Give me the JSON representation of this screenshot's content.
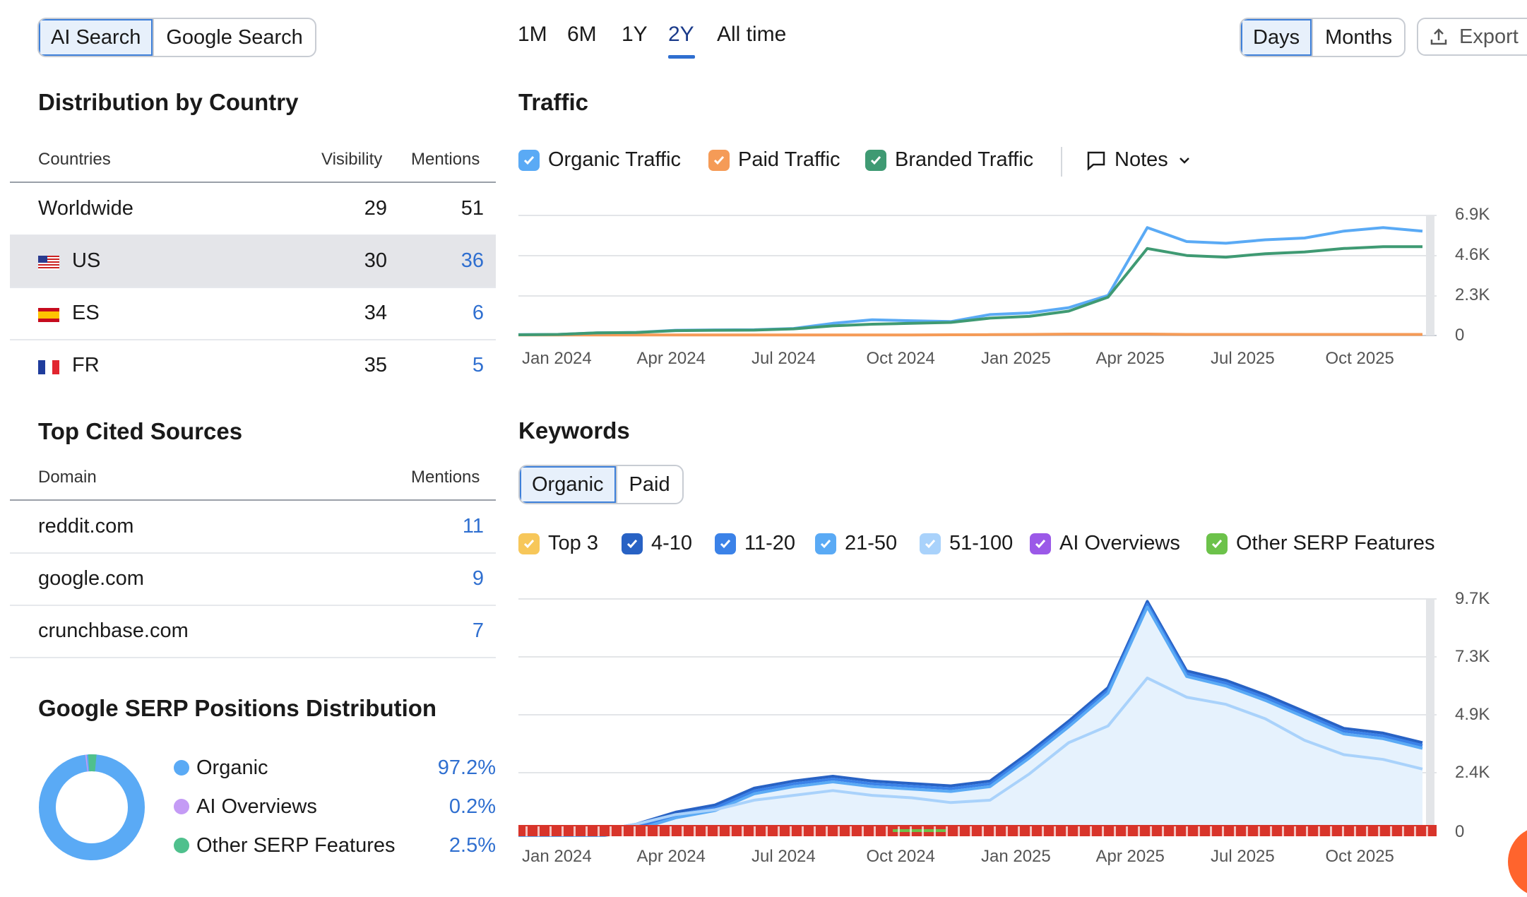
{
  "search_toggle": {
    "ai": "AI Search",
    "google": "Google Search"
  },
  "periods": [
    "1M",
    "6M",
    "1Y",
    "2Y",
    "All time"
  ],
  "active_period": "2Y",
  "granularity": {
    "days": "Days",
    "months": "Months"
  },
  "export_label": "Export",
  "country": {
    "title": "Distribution by Country",
    "headers": {
      "countries": "Countries",
      "visibility": "Visibility",
      "mentions": "Mentions"
    },
    "rows": [
      {
        "name": "Worldwide",
        "visibility": "29",
        "mentions": "51"
      },
      {
        "name": "US",
        "visibility": "30",
        "mentions": "36"
      },
      {
        "name": "ES",
        "visibility": "34",
        "mentions": "6"
      },
      {
        "name": "FR",
        "visibility": "35",
        "mentions": "5"
      }
    ]
  },
  "sources": {
    "title": "Top Cited Sources",
    "headers": {
      "domain": "Domain",
      "mentions": "Mentions"
    },
    "rows": [
      {
        "domain": "reddit.com",
        "mentions": "11"
      },
      {
        "domain": "google.com",
        "mentions": "9"
      },
      {
        "domain": "crunchbase.com",
        "mentions": "7"
      }
    ]
  },
  "serp": {
    "title": "Google SERP Positions Distribution",
    "items": [
      {
        "label": "Organic",
        "value": "97.2%",
        "color": "#5aaaf5"
      },
      {
        "label": "AI Overviews",
        "value": "0.2%",
        "color": "#c49bf5"
      },
      {
        "label": "Other SERP Features",
        "value": "2.5%",
        "color": "#4fc08d"
      }
    ]
  },
  "traffic": {
    "title": "Traffic",
    "legend": [
      {
        "label": "Organic Traffic",
        "color": "#5aaaf5"
      },
      {
        "label": "Paid Traffic",
        "color": "#f59b57"
      },
      {
        "label": "Branded Traffic",
        "color": "#3f9a73"
      }
    ],
    "notes_label": "Notes",
    "y_ticks": [
      "6.9K",
      "4.6K",
      "2.3K",
      "0"
    ],
    "x_ticks": [
      "Jan 2024",
      "Apr 2024",
      "Jul 2024",
      "Oct 2024",
      "Jan 2025",
      "Apr 2025",
      "Jul 2025",
      "Oct 2025"
    ]
  },
  "keywords": {
    "title": "Keywords",
    "tabs": {
      "organic": "Organic",
      "paid": "Paid"
    },
    "legend": [
      {
        "label": "Top 3",
        "color": "#f7c75a"
      },
      {
        "label": "4-10",
        "color": "#2862c4"
      },
      {
        "label": "11-20",
        "color": "#3b82e8"
      },
      {
        "label": "21-50",
        "color": "#5aaaf5"
      },
      {
        "label": "51-100",
        "color": "#a9d2fb"
      },
      {
        "label": "AI Overviews",
        "color": "#9b59e8"
      },
      {
        "label": "Other SERP Features",
        "color": "#6cc24a"
      }
    ],
    "y_ticks": [
      "9.7K",
      "7.3K",
      "4.9K",
      "2.4K",
      "0"
    ],
    "x_ticks": [
      "Jan 2024",
      "Apr 2024",
      "Jul 2024",
      "Oct 2024",
      "Jan 2025",
      "Apr 2025",
      "Jul 2025",
      "Oct 2025"
    ]
  },
  "chart_data": [
    {
      "type": "line",
      "title": "Traffic",
      "x": [
        "Dec 2023",
        "Jan 2024",
        "Feb 2024",
        "Mar 2024",
        "Apr 2024",
        "May 2024",
        "Jun 2024",
        "Jul 2024",
        "Aug 2024",
        "Sep 2024",
        "Oct 2024",
        "Nov 2024",
        "Dec 2024",
        "Jan 2025",
        "Feb 2025",
        "Mar 2025",
        "Apr 2025",
        "May 2025",
        "Jun 2025",
        "Jul 2025",
        "Aug 2025",
        "Sep 2025",
        "Oct 2025",
        "Nov 2025"
      ],
      "series": [
        {
          "name": "Organic Traffic",
          "values": [
            50,
            60,
            150,
            180,
            300,
            320,
            330,
            400,
            700,
            900,
            850,
            800,
            1200,
            1300,
            1600,
            2300,
            6200,
            5400,
            5300,
            5500,
            5600,
            6000,
            6200,
            6000
          ]
        },
        {
          "name": "Paid Traffic",
          "values": [
            30,
            30,
            30,
            30,
            30,
            30,
            30,
            30,
            30,
            30,
            30,
            40,
            50,
            60,
            80,
            80,
            80,
            60,
            60,
            60,
            60,
            60,
            60,
            60
          ]
        },
        {
          "name": "Branded Traffic",
          "values": [
            40,
            60,
            150,
            170,
            280,
            300,
            310,
            380,
            550,
            650,
            700,
            750,
            1000,
            1100,
            1400,
            2200,
            5000,
            4600,
            4500,
            4700,
            4800,
            5000,
            5100,
            5100
          ]
        }
      ],
      "ylim": [
        0,
        6900
      ],
      "grid": true
    },
    {
      "type": "area",
      "title": "Keywords",
      "x": [
        "Dec 2023",
        "Jan 2024",
        "Feb 2024",
        "Mar 2024",
        "Apr 2024",
        "May 2024",
        "Jun 2024",
        "Jul 2024",
        "Aug 2024",
        "Sep 2024",
        "Oct 2024",
        "Nov 2024",
        "Dec 2024",
        "Jan 2025",
        "Feb 2025",
        "Mar 2025",
        "Apr 2025",
        "May 2025",
        "Jun 2025",
        "Jul 2025",
        "Aug 2025",
        "Sep 2025",
        "Oct 2025",
        "Nov 2025"
      ],
      "series": [
        {
          "name": "51-100",
          "values": [
            0,
            0,
            0,
            300,
            700,
            900,
            1300,
            1500,
            1700,
            1500,
            1400,
            1200,
            1300,
            2400,
            3700,
            4400,
            6400,
            5600,
            5300,
            4700,
            3800,
            3200,
            3000,
            2600
          ]
        },
        {
          "name": "21-50",
          "values": [
            0,
            0,
            0,
            300,
            800,
            1100,
            1800,
            2100,
            2300,
            2100,
            2000,
            1900,
            2100,
            3300,
            4600,
            6000,
            9600,
            6700,
            6300,
            5700,
            5000,
            4300,
            4100,
            3700
          ]
        }
      ],
      "ylim": [
        0,
        9700
      ],
      "grid": true
    }
  ]
}
